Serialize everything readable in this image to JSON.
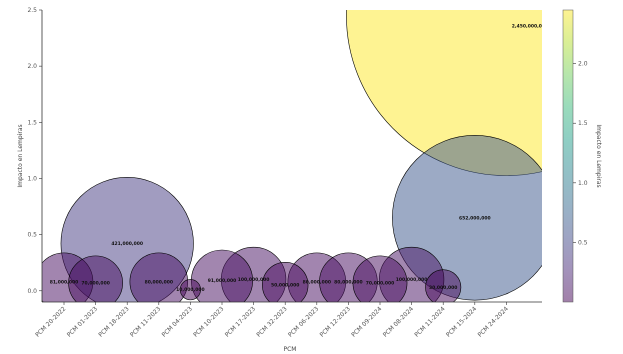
{
  "chart_data": {
    "type": "scatter",
    "title": "",
    "xlabel": "PCM",
    "ylabel": "Impacto en Lempiras",
    "ylim": [
      -0.1,
      2.5
    ],
    "yticks": [
      0.0,
      0.5,
      1.0,
      1.5,
      2.0,
      2.5
    ],
    "y_tick_labels": [
      "0.0",
      "0.5",
      "1.0",
      "1.5",
      "2.0",
      "2.5"
    ],
    "categories": [
      "PCM 20-2022",
      "PCM 01-2023",
      "PCM 18-2023",
      "PCM 11-2023",
      "PCM 04-2023",
      "PCM 10-2023",
      "PCM 17-2023",
      "PCM 32-2023",
      "PCM 06-2023",
      "PCM 12-2023",
      "PCM 09-2024",
      "PCM 08-2024",
      "PCM 11-2024",
      "PCM 15-2024",
      "PCM 24-2024"
    ],
    "points": [
      {
        "x": "PCM 20-2022",
        "y": 0.08,
        "label": "81,000,000"
      },
      {
        "x": "PCM 01-2023",
        "y": 0.07,
        "label": "70,000,000"
      },
      {
        "x": "PCM 18-2023",
        "y": 0.42,
        "label": "421,000,000"
      },
      {
        "x": "PCM 11-2023",
        "y": 0.08,
        "label": "80,000,000"
      },
      {
        "x": "PCM 04-2023",
        "y": 0.01,
        "label": "10,000,000"
      },
      {
        "x": "PCM 10-2023",
        "y": 0.09,
        "label": "91,000,000"
      },
      {
        "x": "PCM 17-2023",
        "y": 0.1,
        "label": "100,000,000"
      },
      {
        "x": "PCM 32-2023",
        "y": 0.05,
        "label": "50,000,000"
      },
      {
        "x": "PCM 06-2023",
        "y": 0.08,
        "label": "80,000,000"
      },
      {
        "x": "PCM 12-2023",
        "y": 0.08,
        "label": "80,000,000"
      },
      {
        "x": "PCM 09-2024",
        "y": 0.07,
        "label": "70,000,000"
      },
      {
        "x": "PCM 08-2024",
        "y": 0.1,
        "label": "100,000,000"
      },
      {
        "x": "PCM 11-2024",
        "y": 0.03,
        "label": "30,000,000"
      },
      {
        "x": "PCM 15-2024",
        "y": 0.65,
        "label": "652,000,000"
      },
      {
        "x": "PCM 24-2024",
        "y": 2.45,
        "label": "2,450,000,000"
      }
    ],
    "colorbar": {
      "label": "Impacto en Lempiras",
      "range": [
        0.0,
        2.45
      ],
      "ticks": [
        0.5,
        1.0,
        1.5,
        2.0
      ],
      "tick_labels": [
        "0.5",
        "1.0",
        "1.5",
        "2.0"
      ],
      "colormap": "viridis",
      "alpha": 0.5
    },
    "grid": false,
    "legend": "none"
  }
}
